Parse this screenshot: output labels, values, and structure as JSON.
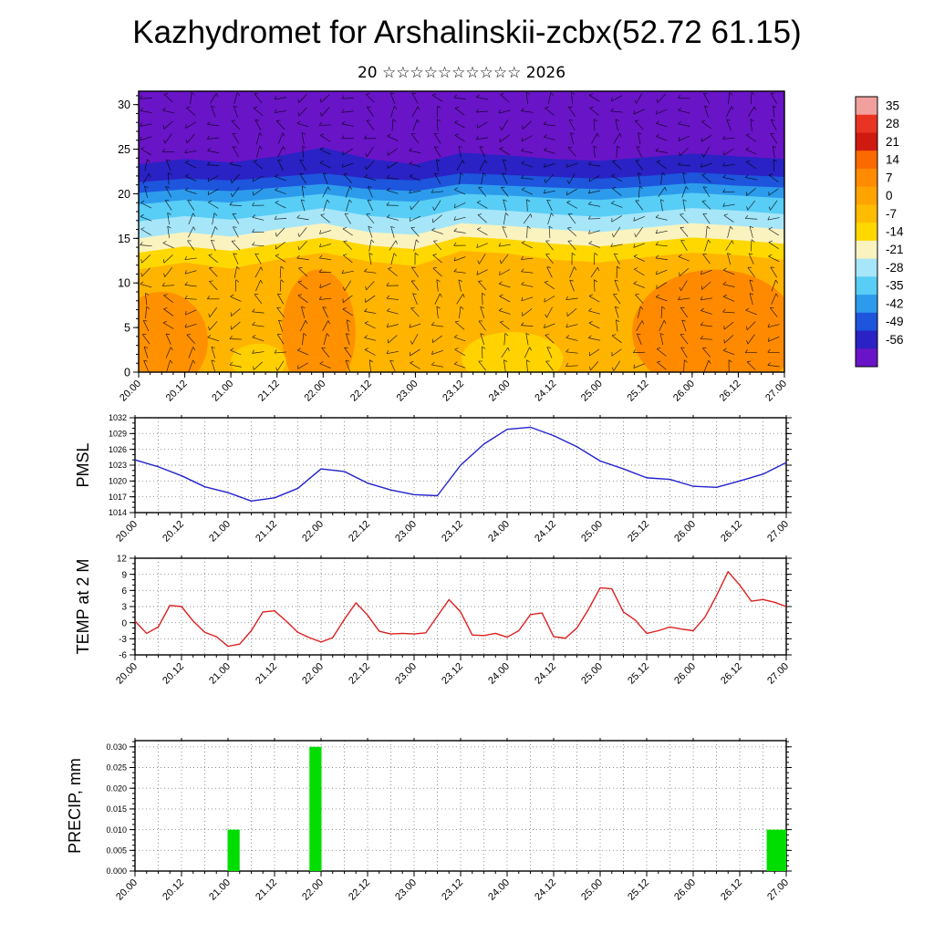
{
  "title": "Kazhydromet for Arshalinskii-zcbx(52.72 61.15)",
  "subtitle": "20 ☆☆☆☆☆☆☆☆☆☆ 2026",
  "time_axis": {
    "start": 20,
    "end": 27,
    "labels": [
      "20.00",
      "20.12",
      "21.00",
      "21.12",
      "22.00",
      "22.12",
      "23.00",
      "23.12",
      "24.00",
      "24.12",
      "25.00",
      "25.12",
      "26.00",
      "26.12",
      "27.00"
    ]
  },
  "chart_data": [
    {
      "type": "heatmap",
      "name": "temperature-height cross section with wind barbs",
      "ylim": [
        0,
        31.5
      ],
      "yticks": [
        0,
        5,
        10,
        15,
        20,
        25,
        30
      ],
      "colorbar_labels": [
        "35",
        "28",
        "21",
        "14",
        "7",
        "0",
        "-7",
        "-14",
        "-21",
        "-28",
        "-35",
        "-42",
        "-49",
        "-56"
      ],
      "colorbar_colors": [
        "#f2a09e",
        "#ea3423",
        "#cf1a10",
        "#fa6a00",
        "#ff8c00",
        "#ffa300",
        "#ffbc00",
        "#ffd800",
        "#faf3c0",
        "#a6e6f8",
        "#58cdf6",
        "#2d9bec",
        "#1d55dd",
        "#2a22c4",
        "#6a14c8"
      ],
      "base_color": "#ffb400",
      "isotherm_levels": [
        {
          "value": -7,
          "color": "#ffd800",
          "heights": [
            11.5,
            12.3,
            11.6,
            12.6,
            13.4,
            12.4,
            11.9,
            13.6,
            13.3,
            12.6,
            12.3,
            12.9,
            13.4,
            13.1,
            12.6
          ]
        },
        {
          "value": -14,
          "color": "#faf3c0",
          "heights": [
            13.4,
            14.1,
            13.6,
            14.4,
            15.1,
            14.2,
            13.8,
            15.2,
            14.9,
            14.4,
            14.1,
            14.6,
            15.1,
            14.8,
            14.4
          ]
        },
        {
          "value": -21,
          "color": "#a6e6f8",
          "heights": [
            15.0,
            15.7,
            15.2,
            16.0,
            16.7,
            15.7,
            15.4,
            16.7,
            16.4,
            16.0,
            15.7,
            16.2,
            16.7,
            16.4,
            16.0
          ]
        },
        {
          "value": -28,
          "color": "#58cdf6",
          "heights": [
            16.9,
            17.5,
            17.1,
            17.7,
            18.4,
            17.5,
            17.2,
            18.4,
            18.1,
            17.7,
            17.4,
            17.9,
            18.4,
            18.1,
            17.7
          ]
        },
        {
          "value": -35,
          "color": "#2d9bec",
          "heights": [
            18.8,
            19.3,
            19.0,
            19.5,
            20.0,
            19.3,
            19.1,
            20.0,
            19.8,
            19.5,
            19.3,
            19.7,
            20.1,
            19.8,
            19.5
          ]
        },
        {
          "value": -42,
          "color": "#1d55dd",
          "heights": [
            20.1,
            20.5,
            20.3,
            20.7,
            21.1,
            20.5,
            20.3,
            21.1,
            20.9,
            20.7,
            20.5,
            20.8,
            21.2,
            20.9,
            20.7
          ]
        },
        {
          "value": -49,
          "color": "#2a22c4",
          "heights": [
            21.3,
            21.7,
            21.5,
            21.9,
            22.3,
            21.7,
            21.5,
            22.3,
            22.1,
            21.9,
            21.7,
            22.0,
            22.4,
            22.1,
            21.9
          ]
        },
        {
          "value": -56,
          "color": "#6a14c8",
          "heights": [
            23.3,
            23.9,
            23.5,
            24.2,
            25.2,
            23.9,
            23.3,
            24.6,
            24.3,
            23.9,
            23.7,
            24.1,
            24.5,
            24.2,
            23.9
          ]
        }
      ],
      "warm_patches": [
        {
          "t": 20.25,
          "y": 3.5,
          "rt": 0.5,
          "ry": 5.5,
          "color": "#ff9000"
        },
        {
          "t": 21.95,
          "y": 4.5,
          "rt": 0.4,
          "ry": 7.0,
          "color": "#ff9000"
        },
        {
          "t": 26.25,
          "y": 4.5,
          "rt": 0.9,
          "ry": 7.0,
          "color": "#ff8a00"
        },
        {
          "t": 24.05,
          "y": 1.5,
          "rt": 0.55,
          "ry": 3.0,
          "color": "#ffd200"
        },
        {
          "t": 21.3,
          "y": 1.2,
          "rt": 0.3,
          "ry": 2.0,
          "color": "#ffcf00"
        }
      ]
    },
    {
      "type": "line",
      "name": "PMSL",
      "color": "#2222cc",
      "ylim": [
        1014,
        1032
      ],
      "yticks": [
        1014,
        1017,
        1020,
        1023,
        1026,
        1029,
        1032
      ],
      "step_hours": 6,
      "values": [
        1024.0,
        1022.7,
        1021.0,
        1018.9,
        1017.8,
        1016.2,
        1016.8,
        1018.6,
        1022.3,
        1021.8,
        1019.6,
        1018.3,
        1017.4,
        1017.2,
        1023.0,
        1027.0,
        1029.8,
        1030.2,
        1028.6,
        1026.5,
        1023.8,
        1022.3,
        1020.6,
        1020.3,
        1019.0,
        1018.8,
        1020.0,
        1021.3,
        1023.5
      ]
    },
    {
      "type": "line",
      "name": "TEMP at 2 M",
      "color": "#dd2020",
      "ylim": [
        -6,
        12
      ],
      "yticks": [
        -6,
        -3,
        0,
        3,
        6,
        9,
        12
      ],
      "step_hours": 3,
      "values": [
        0.3,
        -2.0,
        -0.8,
        3.2,
        3.0,
        0.3,
        -1.8,
        -2.6,
        -4.4,
        -4.0,
        -1.5,
        2.0,
        2.2,
        0.3,
        -1.8,
        -2.8,
        -3.6,
        -2.8,
        0.6,
        3.7,
        1.4,
        -1.6,
        -2.1,
        -2.0,
        -2.1,
        -1.9,
        1.2,
        4.3,
        2.0,
        -2.3,
        -2.4,
        -2.0,
        -2.7,
        -1.5,
        1.5,
        1.8,
        -2.6,
        -2.9,
        -1.0,
        2.5,
        6.5,
        6.3,
        2.0,
        0.5,
        -2.0,
        -1.5,
        -0.8,
        -1.2,
        -1.5,
        1.0,
        5.0,
        9.5,
        7.0,
        4.0,
        4.3,
        3.8,
        3.0
      ]
    },
    {
      "type": "bar",
      "name": "PRECIP, mm",
      "color": "#00dd00",
      "ylim": [
        0,
        0.0315
      ],
      "yticks": [
        0,
        0.005,
        0.01,
        0.015,
        0.02,
        0.025,
        0.03
      ],
      "ytick_labels": [
        "0.000",
        "0.005",
        "0.010",
        "0.015",
        "0.020",
        "0.025",
        "0.030"
      ],
      "bars": [
        {
          "x": 21.06,
          "w": 0.13,
          "v": 0.01
        },
        {
          "x": 21.94,
          "w": 0.13,
          "v": 0.03
        },
        {
          "x": 26.9,
          "w": 0.22,
          "v": 0.01
        }
      ]
    }
  ]
}
